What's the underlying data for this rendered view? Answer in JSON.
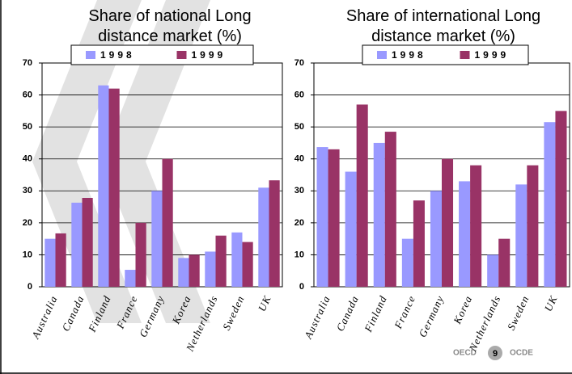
{
  "chart_data": [
    {
      "type": "bar",
      "title": "Share of national Long distance market (%)",
      "categories": [
        "Australia",
        "Canada",
        "Finland",
        "France",
        "Germany",
        "Korea",
        "Netherlands",
        "Sweden",
        "UK"
      ],
      "series": [
        {
          "name": "1998",
          "color": "#9999ff",
          "values": [
            15,
            26.3,
            63,
            5.3,
            30,
            9,
            11,
            17,
            31
          ]
        },
        {
          "name": "1999",
          "color": "#993366",
          "values": [
            16.7,
            27.8,
            62,
            20,
            40,
            10,
            16,
            14,
            33.3
          ]
        }
      ],
      "ylim": [
        0,
        70
      ],
      "yticks": [
        0,
        10,
        20,
        30,
        40,
        50,
        60,
        70
      ],
      "grid": true,
      "legend": "top"
    },
    {
      "type": "bar",
      "title": "Share of international Long distance market (%)",
      "categories": [
        "Australia",
        "Canada",
        "Finland",
        "France",
        "Germany",
        "Korea",
        "Netherlands",
        "Sweden",
        "UK"
      ],
      "series": [
        {
          "name": "1998",
          "color": "#9999ff",
          "values": [
            43.7,
            36,
            45,
            15,
            30,
            33,
            10,
            32,
            51.5
          ]
        },
        {
          "name": "1999",
          "color": "#993366",
          "values": [
            43,
            57,
            48.5,
            27,
            40,
            38,
            15,
            38,
            55
          ]
        }
      ],
      "ylim": [
        0,
        70
      ],
      "yticks": [
        0,
        10,
        20,
        30,
        40,
        50,
        60,
        70
      ],
      "grid": true,
      "legend": "top"
    }
  ],
  "footer": {
    "logo_left": "OECD",
    "page": "9",
    "logo_right": "OCDE"
  }
}
